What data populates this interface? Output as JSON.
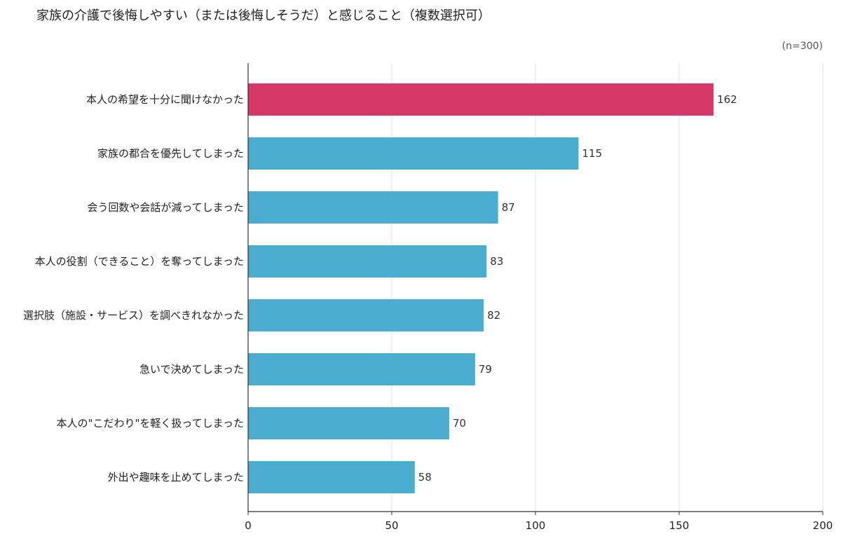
{
  "title": "家族の介護で後悔しやすい（または後悔しそうだ）と感じること（複数選択可）",
  "sample_note": "(n=300)",
  "colors": {
    "highlight": "#d63868",
    "bar": "#4aaccf",
    "grid": "#d9e2ec",
    "axis": "#333333"
  },
  "chart_data": {
    "type": "bar",
    "orientation": "horizontal",
    "categories": [
      "本人の希望を十分に聞けなかった",
      "家族の都合を優先してしまった",
      "会う回数や会話が減ってしまった",
      "本人の役割（できること）を奪ってしまった",
      "選択肢（施設・サービス）を調べきれなかった",
      "急いで決めてしまった",
      "本人の\"こだわり\"を軽く扱ってしまった",
      "外出や趣味を止めてしまった"
    ],
    "values": [
      162,
      115,
      87,
      83,
      82,
      79,
      70,
      58
    ],
    "highlight_index": 0,
    "xlim": [
      0,
      200
    ],
    "xticks": [
      0,
      50,
      100,
      150,
      200
    ],
    "grid": true
  }
}
